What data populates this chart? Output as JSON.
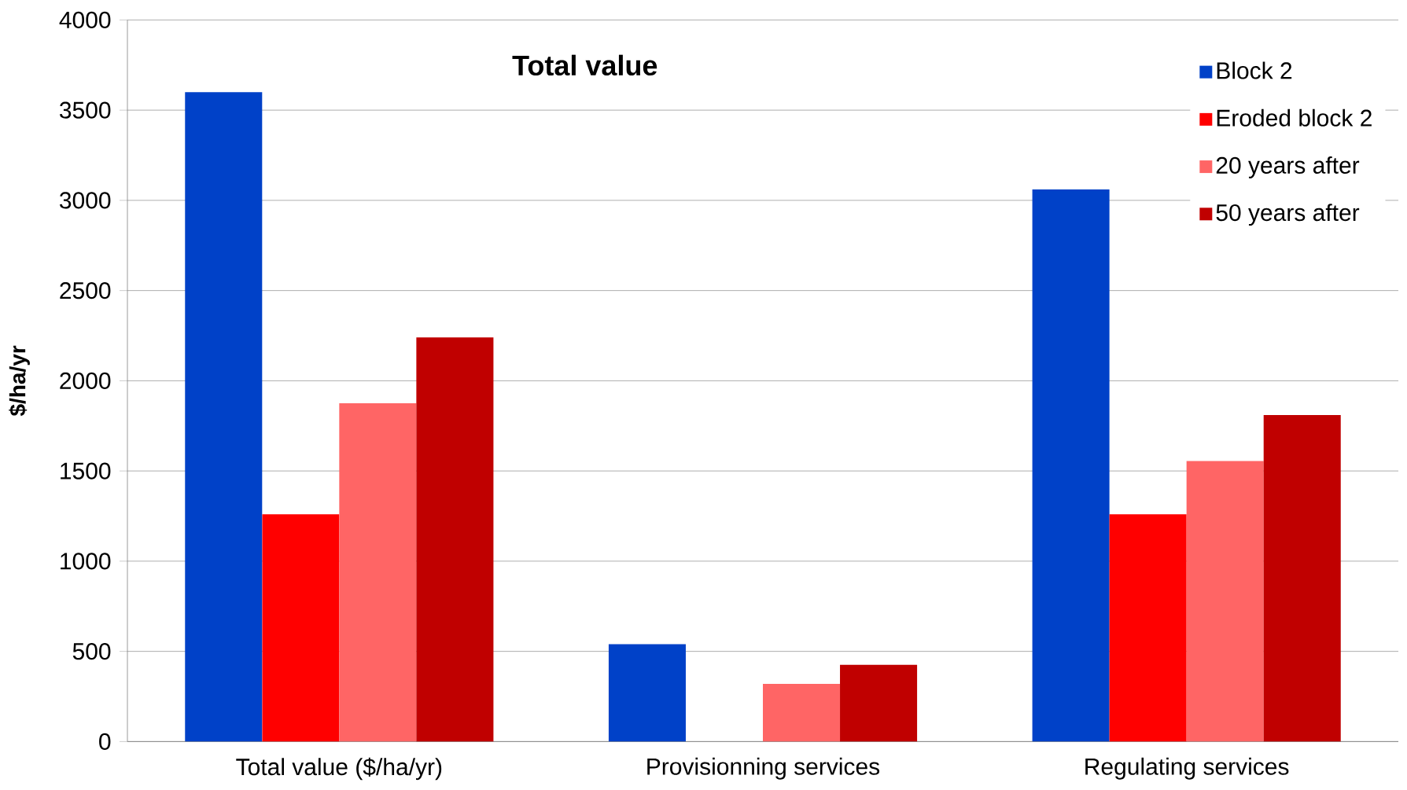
{
  "chart_data": {
    "type": "bar",
    "title": "Total value",
    "ylabel": "$/ha/yr",
    "categories": [
      "Total value ($/ha/yr)",
      "Provisionning services",
      "Regulating services"
    ],
    "series": [
      {
        "name": "Block 2",
        "color": "#0041c8",
        "values": [
          3600,
          540,
          3060
        ]
      },
      {
        "name": "Eroded block 2",
        "color": "#ff0000",
        "values": [
          1260,
          0,
          1260
        ]
      },
      {
        "name": "20 years after",
        "color": "#ff6565",
        "values": [
          1875,
          320,
          1555
        ]
      },
      {
        "name": "50 years after",
        "color": "#c00000",
        "values": [
          2240,
          425,
          1810
        ]
      }
    ],
    "ylim": [
      0,
      4000
    ],
    "yticks": [
      0,
      500,
      1000,
      1500,
      2000,
      2500,
      3000,
      3500,
      4000
    ],
    "grid": "y",
    "legend": "top right"
  }
}
